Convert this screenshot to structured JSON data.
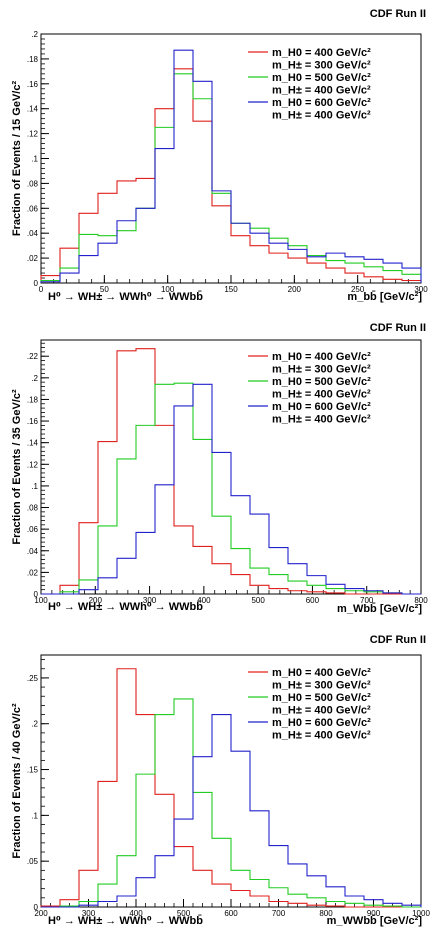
{
  "chart_data": [
    {
      "type": "histogram",
      "experiment_label": "CDF Run II",
      "ylabel": "Fraction of Events / 15 GeV/c²",
      "xlabel": "m_bb̄ [GeV/c²]",
      "process_label": "H⁰ → WH± → WWh⁰ → WWbb̄",
      "xlim": [
        0,
        300
      ],
      "ylim": [
        0,
        0.2
      ],
      "x_ticks": [
        0,
        50,
        100,
        150,
        200,
        250,
        300
      ],
      "y_ticks": [
        0,
        0.02,
        0.04,
        0.06,
        0.08,
        0.1,
        0.12,
        0.14,
        0.16,
        0.18,
        0.2
      ],
      "bin_edges": [
        0,
        15,
        30,
        45,
        60,
        75,
        90,
        105,
        120,
        135,
        150,
        165,
        180,
        195,
        210,
        225,
        240,
        255,
        270,
        285,
        300
      ],
      "series": [
        {
          "name": "m_H0 = 400 GeV/c², m_H± = 300 GeV/c²",
          "color": "#e0201c",
          "values": [
            0.006,
            0.028,
            0.056,
            0.072,
            0.082,
            0.084,
            0.14,
            0.172,
            0.13,
            0.062,
            0.038,
            0.03,
            0.024,
            0.02,
            0.016,
            0.012,
            0.008,
            0.005,
            0.003,
            0.002
          ]
        },
        {
          "name": "m_H0 = 500 GeV/c², m_H± = 400 GeV/c²",
          "color": "#22cc22",
          "values": [
            0.002,
            0.012,
            0.039,
            0.038,
            0.042,
            0.06,
            0.125,
            0.168,
            0.148,
            0.072,
            0.048,
            0.044,
            0.036,
            0.03,
            0.022,
            0.018,
            0.016,
            0.013,
            0.01,
            0.007
          ]
        },
        {
          "name": "m_H0 = 600 GeV/c², m_H± = 400 GeV/c²",
          "color": "#2222cc",
          "values": [
            0.001,
            0.008,
            0.022,
            0.032,
            0.05,
            0.06,
            0.108,
            0.187,
            0.162,
            0.074,
            0.048,
            0.04,
            0.032,
            0.027,
            0.021,
            0.024,
            0.021,
            0.019,
            0.016,
            0.012
          ]
        }
      ]
    },
    {
      "type": "histogram",
      "experiment_label": "CDF Run II",
      "ylabel": "Fraction of Events / 35 GeV/c²",
      "xlabel": "m_Wbb̄ [GeV/c²]",
      "process_label": "H⁰ → WH± → WWh⁰ → WWbb̄",
      "xlim": [
        100,
        800
      ],
      "ylim": [
        0,
        0.235
      ],
      "x_ticks": [
        100,
        200,
        300,
        400,
        500,
        600,
        700,
        800
      ],
      "y_ticks": [
        0,
        0.02,
        0.04,
        0.06,
        0.08,
        0.1,
        0.12,
        0.14,
        0.16,
        0.18,
        0.2,
        0.22
      ],
      "bin_edges": [
        100,
        135,
        170,
        205,
        240,
        275,
        310,
        345,
        380,
        415,
        450,
        485,
        520,
        555,
        590,
        625,
        660,
        695,
        730,
        765,
        800
      ],
      "series": [
        {
          "name": "m_H0 = 400 GeV/c², m_H± = 300 GeV/c²",
          "color": "#e0201c",
          "values": [
            0.0,
            0.008,
            0.066,
            0.141,
            0.225,
            0.227,
            0.156,
            0.063,
            0.044,
            0.028,
            0.018,
            0.008,
            0.005,
            0.003,
            0.002,
            0.001,
            0.0,
            0.0,
            0.0,
            0.0
          ]
        },
        {
          "name": "m_H0 = 500 GeV/c², m_H± = 400 GeV/c²",
          "color": "#22cc22",
          "values": [
            0.0,
            0.002,
            0.013,
            0.063,
            0.125,
            0.156,
            0.194,
            0.195,
            0.143,
            0.072,
            0.042,
            0.024,
            0.018,
            0.012,
            0.008,
            0.005,
            0.003,
            0.002,
            0.001,
            0.0
          ]
        },
        {
          "name": "m_H0 = 600 GeV/c², m_H± = 400 GeV/c²",
          "color": "#2222cc",
          "values": [
            0.0,
            0.0,
            0.004,
            0.015,
            0.033,
            0.057,
            0.101,
            0.174,
            0.194,
            0.131,
            0.091,
            0.074,
            0.043,
            0.028,
            0.017,
            0.009,
            0.005,
            0.003,
            0.001,
            0.0
          ]
        }
      ]
    },
    {
      "type": "histogram",
      "experiment_label": "CDF Run II",
      "ylabel": "Fraction of Events / 40 GeV/c²",
      "xlabel": "m_WWbb̄ [GeV/c²]",
      "process_label": "H⁰ → WH± → WWh⁰ → WWbb̄",
      "xlim": [
        200,
        1000
      ],
      "ylim": [
        0,
        0.275
      ],
      "x_ticks": [
        200,
        300,
        400,
        500,
        600,
        700,
        800,
        900,
        1000
      ],
      "y_ticks": [
        0,
        0.05,
        0.1,
        0.15,
        0.2,
        0.25
      ],
      "bin_edges": [
        200,
        240,
        280,
        320,
        360,
        400,
        440,
        480,
        520,
        560,
        600,
        640,
        680,
        720,
        760,
        800,
        840,
        880,
        920,
        960,
        1000
      ],
      "series": [
        {
          "name": "m_H0 = 400 GeV/c², m_H± = 300 GeV/c²",
          "color": "#e0201c",
          "values": [
            0.001,
            0.008,
            0.04,
            0.137,
            0.26,
            0.21,
            0.123,
            0.066,
            0.04,
            0.025,
            0.018,
            0.012,
            0.006,
            0.004,
            0.002,
            0.001,
            0.0,
            0.0,
            0.0,
            0.0
          ]
        },
        {
          "name": "m_H0 = 500 GeV/c², m_H± = 400 GeV/c²",
          "color": "#22cc22",
          "values": [
            0.0,
            0.001,
            0.006,
            0.025,
            0.056,
            0.145,
            0.21,
            0.227,
            0.125,
            0.075,
            0.04,
            0.03,
            0.021,
            0.014,
            0.01,
            0.006,
            0.004,
            0.002,
            0.001,
            0.0
          ]
        },
        {
          "name": "m_H0 = 600 GeV/c², m_H± = 400 GeV/c²",
          "color": "#2222cc",
          "values": [
            0.0,
            0.0,
            0.002,
            0.006,
            0.012,
            0.032,
            0.056,
            0.096,
            0.164,
            0.21,
            0.17,
            0.105,
            0.067,
            0.047,
            0.034,
            0.022,
            0.012,
            0.008,
            0.004,
            0.002
          ]
        }
      ]
    }
  ]
}
